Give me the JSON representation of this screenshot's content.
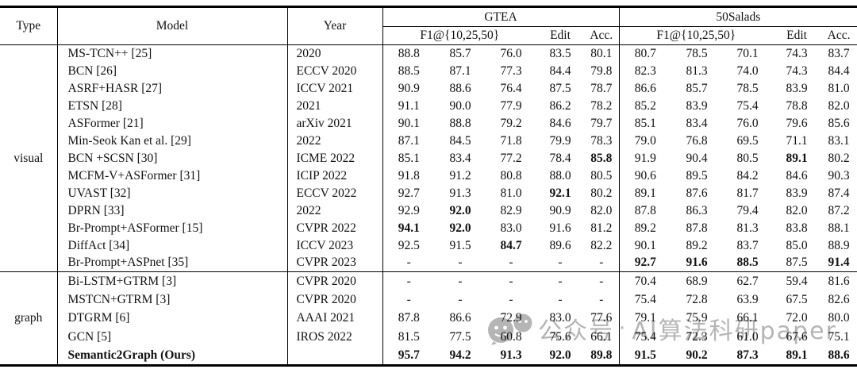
{
  "header": {
    "type": "Type",
    "model": "Model",
    "year": "Year",
    "gtea": "GTEA",
    "salads": "50Salads",
    "f1": "F1@{10,25,50}",
    "edit": "Edit",
    "acc": "Acc."
  },
  "watermark": {
    "icon": "wechat-smiley-faces",
    "text": "公众号",
    "separator": "·",
    "text2": "AI算法科研paper",
    "color": "#b5b5b5"
  },
  "groups": [
    {
      "type": "visual",
      "rows": [
        {
          "model": "MS-TCN++ [25]",
          "year": "2020",
          "gtea": [
            "88.8",
            "85.7",
            "76.0",
            "83.5",
            "80.1"
          ],
          "salads": [
            "80.7",
            "78.5",
            "70.1",
            "74.3",
            "83.7"
          ],
          "gb": [],
          "sb": []
        },
        {
          "model": "BCN [26]",
          "year": "ECCV 2020",
          "gtea": [
            "88.5",
            "87.1",
            "77.3",
            "84.4",
            "79.8"
          ],
          "salads": [
            "82.3",
            "81.3",
            "74.0",
            "74.3",
            "84.4"
          ],
          "gb": [],
          "sb": []
        },
        {
          "model": "ASRF+HASR [27]",
          "year": "ICCV 2021",
          "gtea": [
            "90.9",
            "88.6",
            "76.4",
            "87.5",
            "78.7"
          ],
          "salads": [
            "86.6",
            "85.7",
            "78.5",
            "83.9",
            "81.0"
          ],
          "gb": [],
          "sb": []
        },
        {
          "model": "ETSN [28]",
          "year": "2021",
          "gtea": [
            "91.1",
            "90.0",
            "77.9",
            "86.2",
            "78.2"
          ],
          "salads": [
            "85.2",
            "83.9",
            "75.4",
            "78.8",
            "82.0"
          ],
          "gb": [],
          "sb": []
        },
        {
          "model": "ASFormer [21]",
          "year": "arXiv 2021",
          "gtea": [
            "90.1",
            "88.8",
            "79.2",
            "84.6",
            "79.7"
          ],
          "salads": [
            "85.1",
            "83.4",
            "76.0",
            "79.6",
            "85.6"
          ],
          "gb": [],
          "sb": []
        },
        {
          "model": "Min-Seok Kan et al. [29]",
          "year": "2022",
          "gtea": [
            "87.1",
            "84.5",
            "71.8",
            "79.9",
            "78.3"
          ],
          "salads": [
            "79.0",
            "76.8",
            "69.5",
            "71.1",
            "83.1"
          ],
          "gb": [],
          "sb": []
        },
        {
          "model": "BCN +SCSN [30]",
          "year": "ICME 2022",
          "gtea": [
            "85.1",
            "83.4",
            "77.2",
            "78.4",
            "85.8"
          ],
          "salads": [
            "91.9",
            "90.4",
            "80.5",
            "89.1",
            "80.2"
          ],
          "gb": [
            4
          ],
          "sb": [
            3
          ]
        },
        {
          "model": "MCFM-V+ASFormer [31]",
          "year": "ICIP 2022",
          "gtea": [
            "91.8",
            "91.2",
            "80.8",
            "88.0",
            "80.5"
          ],
          "salads": [
            "90.6",
            "89.5",
            "84.2",
            "84.6",
            "90.3"
          ],
          "gb": [],
          "sb": []
        },
        {
          "model": "UVAST [32]",
          "year": "ECCV 2022",
          "gtea": [
            "92.7",
            "91.3",
            "81.0",
            "92.1",
            "80.2"
          ],
          "salads": [
            "89.1",
            "87.6",
            "81.7",
            "83.9",
            "87.4"
          ],
          "gb": [
            3
          ],
          "sb": []
        },
        {
          "model": "DPRN [33]",
          "year": "2022",
          "gtea": [
            "92.9",
            "92.0",
            "82.9",
            "90.9",
            "82.0"
          ],
          "salads": [
            "87.8",
            "86.3",
            "79.4",
            "82.0",
            "87.2"
          ],
          "gb": [
            1
          ],
          "sb": []
        },
        {
          "model": "Br-Prompt+ASFormer [15]",
          "year": "CVPR 2022",
          "gtea": [
            "94.1",
            "92.0",
            "83.0",
            "91.6",
            "81.2"
          ],
          "salads": [
            "89.2",
            "87.8",
            "81.3",
            "83.8",
            "88.1"
          ],
          "gb": [
            0,
            1
          ],
          "sb": []
        },
        {
          "model": "DiffAct [34]",
          "year": "ICCV 2023",
          "gtea": [
            "92.5",
            "91.5",
            "84.7",
            "89.6",
            "82.2"
          ],
          "salads": [
            "90.1",
            "89.2",
            "83.7",
            "85.0",
            "88.9"
          ],
          "gb": [
            2
          ],
          "sb": []
        },
        {
          "model": "Br-Prompt+ASPnet [35]",
          "year": "CVPR 2023",
          "gtea": [
            "-",
            "-",
            "-",
            "-",
            "-"
          ],
          "salads": [
            "92.7",
            "91.6",
            "88.5",
            "87.5",
            "91.4"
          ],
          "gb": [],
          "sb": [
            0,
            1,
            2,
            4
          ]
        }
      ]
    },
    {
      "type": "graph",
      "rows": [
        {
          "model": "Bi-LSTM+GTRM [3]",
          "year": "CVPR 2020",
          "gtea": [
            "-",
            "-",
            "-",
            "-",
            "-"
          ],
          "salads": [
            "70.4",
            "68.9",
            "62.7",
            "59.4",
            "81.6"
          ],
          "gb": [],
          "sb": []
        },
        {
          "model": "MSTCN+GTRM [3]",
          "year": "CVPR 2020",
          "gtea": [
            "-",
            "-",
            "-",
            "-",
            "-"
          ],
          "salads": [
            "75.4",
            "72.8",
            "63.9",
            "67.5",
            "82.6"
          ],
          "gb": [],
          "sb": []
        },
        {
          "model": "DTGRM [6]",
          "year": "AAAI 2021",
          "gtea": [
            "87.8",
            "86.6",
            "72.9",
            "83.0",
            "77.6"
          ],
          "salads": [
            "79.1",
            "75.9",
            "66.1",
            "72.0",
            "80.0"
          ],
          "gb": [],
          "sb": []
        },
        {
          "model": "GCN [5]",
          "year": "IROS 2022",
          "gtea": [
            "81.5",
            "77.5",
            "60.8",
            "75.6",
            "66.1"
          ],
          "salads": [
            "75.4",
            "72.3",
            "61.0",
            "67.6",
            "75.1"
          ],
          "gb": [],
          "sb": []
        },
        {
          "model": "Semantic2Graph (Ours)",
          "year": "",
          "bold_model": true,
          "gtea": [
            "95.7",
            "94.2",
            "91.3",
            "92.0",
            "89.8"
          ],
          "salads": [
            "91.5",
            "90.2",
            "87.3",
            "89.1",
            "88.6"
          ],
          "gb": [
            0,
            1,
            2,
            3,
            4
          ],
          "sb": [
            0,
            1,
            2,
            3,
            4
          ]
        }
      ]
    }
  ]
}
